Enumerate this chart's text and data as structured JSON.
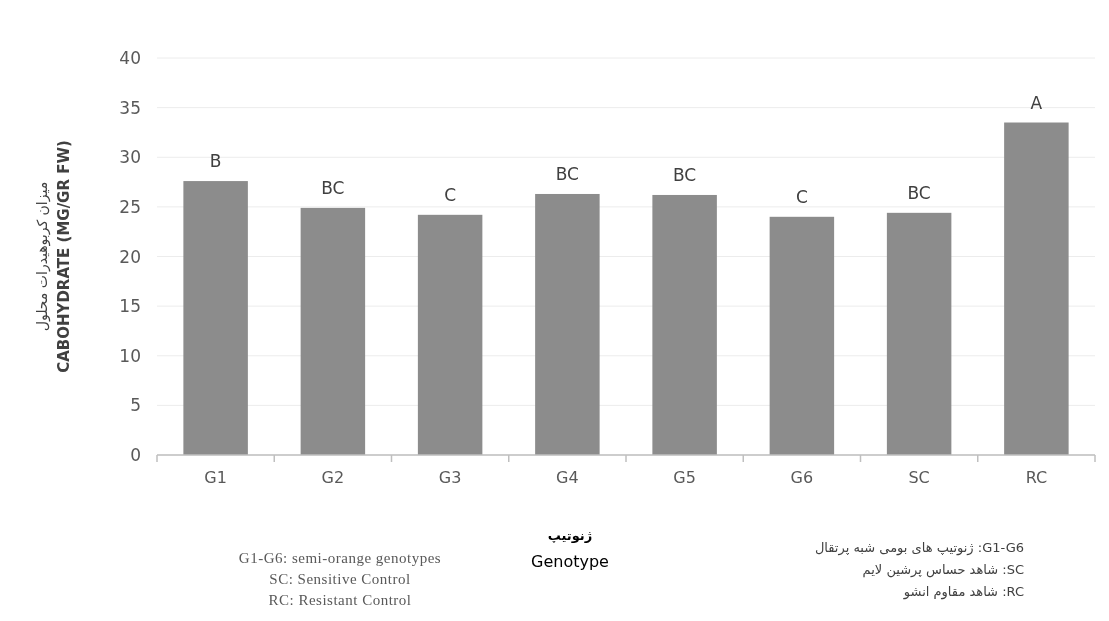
{
  "chart_data": {
    "type": "bar",
    "ylabel": "میزان کربوهیدرات محلول\nCABOHYDRATE  (MG/GR FW)",
    "xlabel": "ژنوتیپ\nGenotype",
    "categories": [
      "G1",
      "G2",
      "G3",
      "G4",
      "G5",
      "G6",
      "SC",
      "RC"
    ],
    "values": [
      27.6,
      24.9,
      24.2,
      26.3,
      26.2,
      24.0,
      24.4,
      33.5
    ],
    "value_labels": [
      "B",
      "BC",
      "C",
      "BC",
      "BC",
      "C",
      "BC",
      "A"
    ],
    "color": "#8c8c8c",
    "ylim": [
      0,
      40
    ],
    "yticks": [
      0,
      5,
      10,
      15,
      20,
      25,
      30,
      35,
      40
    ],
    "grid": "y",
    "annotations": [
      "G1-G6: semi-orange genotypes\nSC: Sensitive Control\nRC: Resistant Control",
      "G1-G6: ژنوتیپ های بومی شبه پرتقال\nSC: شاهد حساس پرشین لایم\nRC: شاهد مقاوم انشو"
    ]
  }
}
